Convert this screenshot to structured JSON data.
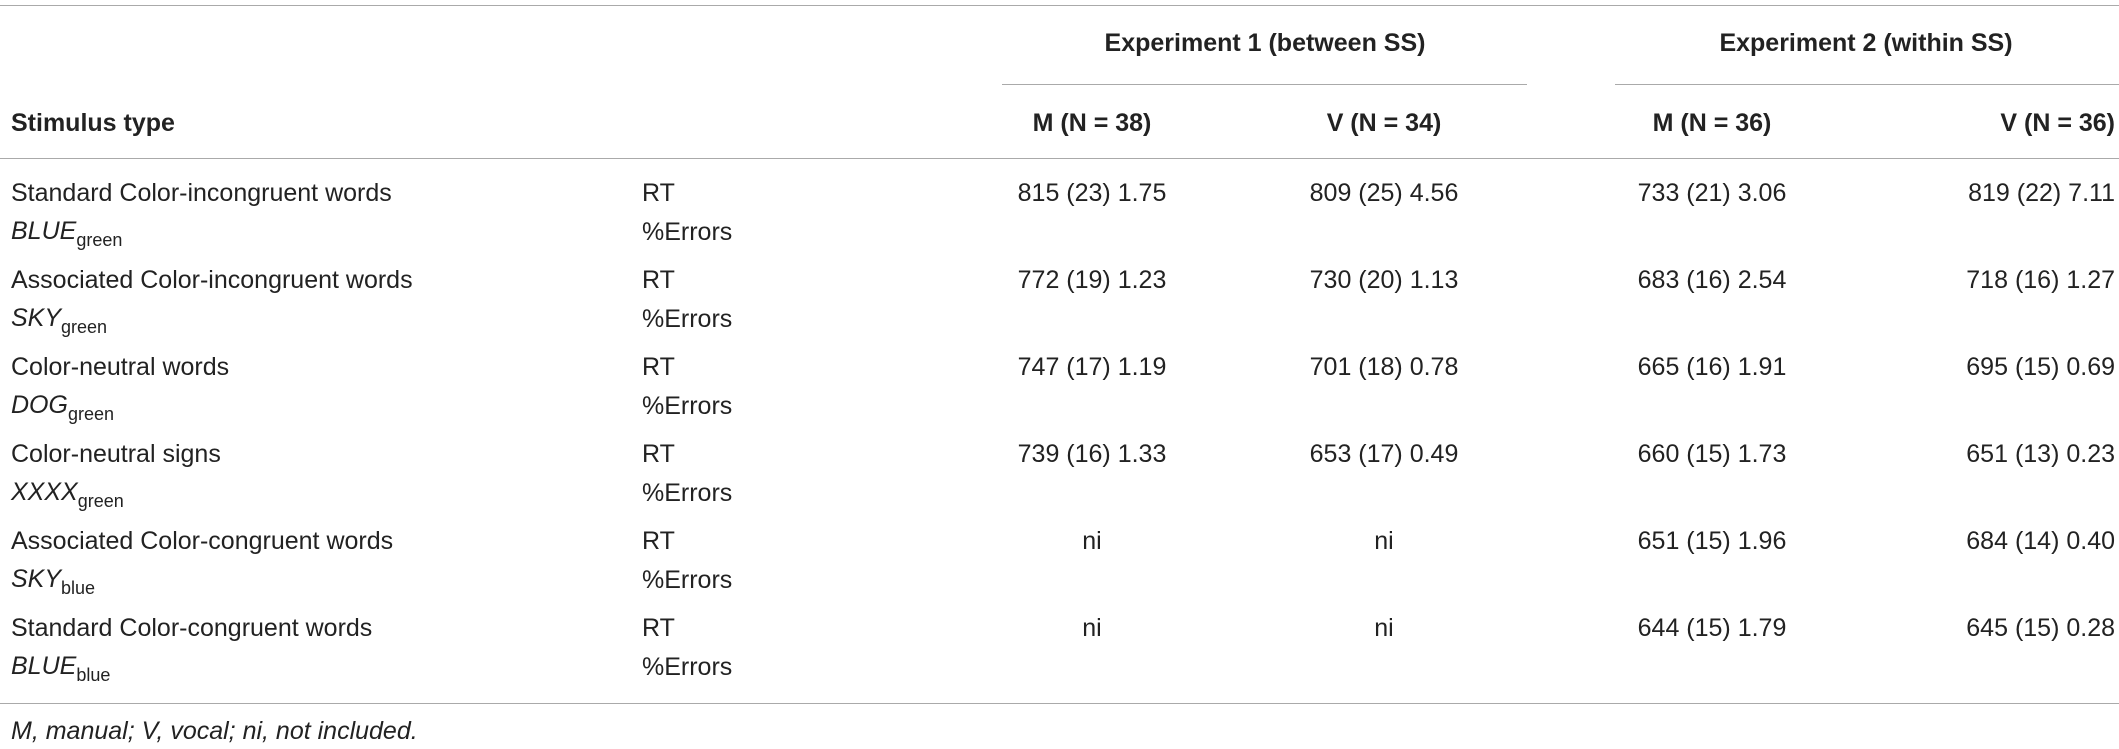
{
  "table": {
    "header": {
      "stub": "Stimulus type",
      "groups": [
        "Experiment 1 (between SS)",
        "Experiment 2 (within SS)"
      ],
      "columns": [
        "M (N = 38)",
        "V (N = 34)",
        "M (N = 36)",
        "V (N = 36)"
      ]
    },
    "rows": [
      {
        "name": "Standard Color-incongruent words",
        "word": "BLUE",
        "sub": "green",
        "measures": [
          "RT",
          "%Errors"
        ],
        "cells": [
          "815 (23) 1.75",
          "809 (25) 4.56",
          "733 (21) 3.06",
          "819 (22) 7.11"
        ]
      },
      {
        "name": "Associated Color-incongruent words",
        "word": "SKY",
        "sub": "green",
        "measures": [
          "RT",
          "%Errors"
        ],
        "cells": [
          "772 (19) 1.23",
          "730 (20) 1.13",
          "683 (16) 2.54",
          "718 (16) 1.27"
        ]
      },
      {
        "name": "Color-neutral words",
        "word": "DOG",
        "sub": "green",
        "measures": [
          "RT",
          "%Errors"
        ],
        "cells": [
          "747 (17) 1.19",
          "701 (18) 0.78",
          "665 (16) 1.91",
          "695 (15) 0.69"
        ]
      },
      {
        "name": "Color-neutral signs",
        "word": "XXXX",
        "sub": "green",
        "measures": [
          "RT",
          "%Errors"
        ],
        "cells": [
          "739 (16) 1.33",
          "653 (17) 0.49",
          "660 (15) 1.73",
          "651 (13) 0.23"
        ]
      },
      {
        "name": "Associated Color-congruent words",
        "word": "SKY",
        "sub": "blue",
        "measures": [
          "RT",
          "%Errors"
        ],
        "cells": [
          "ni",
          "ni",
          "651 (15) 1.96",
          "684 (14) 0.40"
        ]
      },
      {
        "name": "Standard Color-congruent words",
        "word": "BLUE",
        "sub": "blue",
        "measures": [
          "RT",
          "%Errors"
        ],
        "cells": [
          "ni",
          "ni",
          "644 (15) 1.79",
          "645 (15) 0.28"
        ]
      }
    ],
    "footnote": "M, manual; V, vocal; ni, not included."
  }
}
